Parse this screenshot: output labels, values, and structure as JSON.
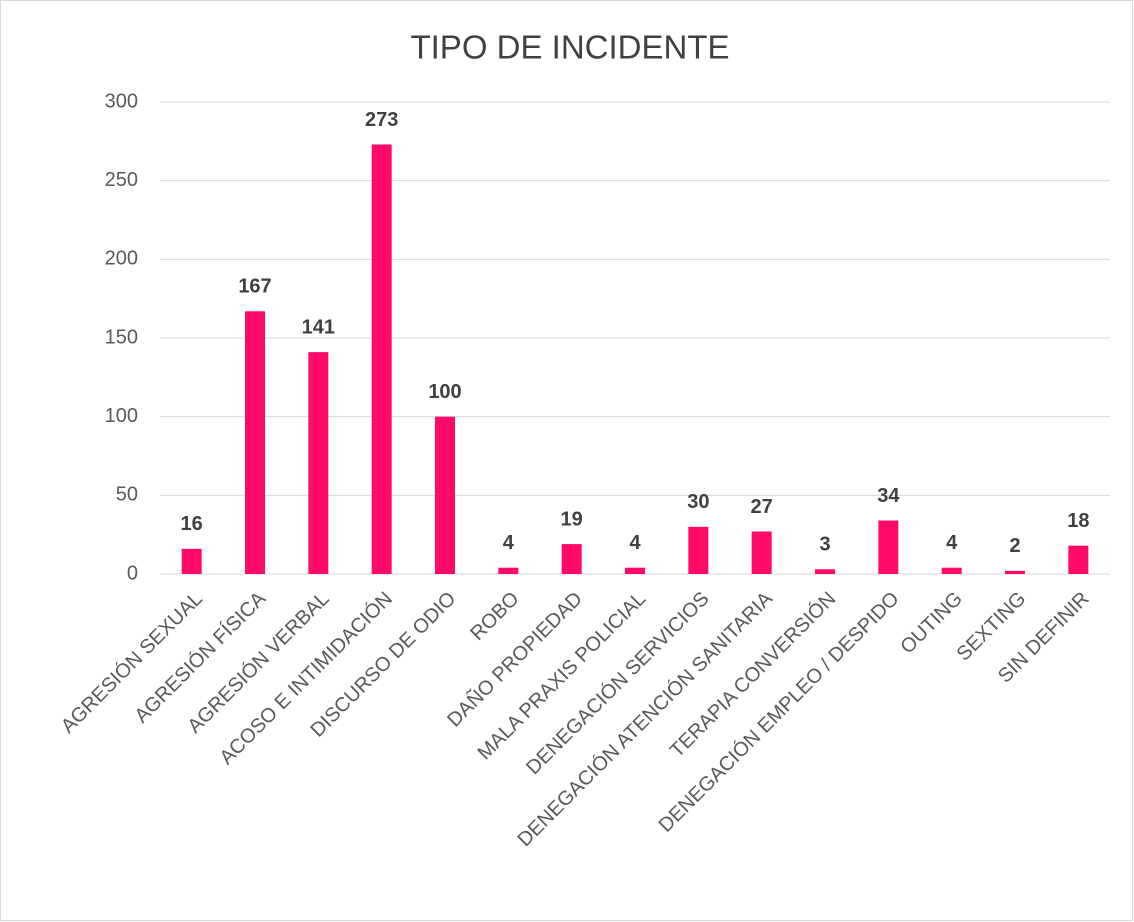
{
  "chart_data": {
    "type": "bar",
    "title": "TIPO DE INCIDENTE",
    "categories": [
      "AGRESIÓN SEXUAL",
      "AGRESIÓN FÍSICA",
      "AGRESIÓN VERBAL",
      "ACOSO E INTIMIDACIÓN",
      "DISCURSO DE ODIO",
      "ROBO",
      "DAÑO PROPIEDAD",
      "MALA PRAXIS POLICIAL",
      "DENEGACIÓN SERVICIOS",
      "DENEGACIÓN ATENCIÓN SANITARIA",
      "TERAPIA CONVERSIÓN",
      "DENEGACIÓN EMPLEO / DESPIDO",
      "OUTING",
      "SEXTING",
      "SIN DEFINIR"
    ],
    "values": [
      16,
      167,
      141,
      273,
      100,
      4,
      19,
      4,
      30,
      27,
      3,
      34,
      4,
      2,
      18
    ],
    "color": "#ff0a68",
    "ylim": [
      0,
      300
    ],
    "yticks": [
      0,
      50,
      100,
      150,
      200,
      250,
      300
    ],
    "grid": true
  }
}
